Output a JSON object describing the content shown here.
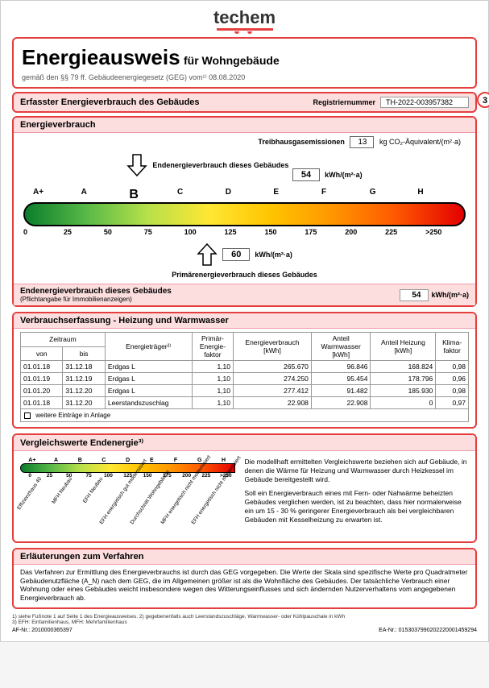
{
  "logo": "techem",
  "header": {
    "title_main": "Energieausweis",
    "title_sub": "für Wohngebäude",
    "law_line": "gemäß den §§ 79 ff. Gebäudeenergiegesetz (GEG) vom¹⁾ 08.08.2020"
  },
  "registration": {
    "label": "Erfasster Energieverbrauch des Gebäudes",
    "reg_label": "Registriernummer",
    "reg_value": "TH-2022-003957382",
    "page_num": "3"
  },
  "verbrauch": {
    "title": "Energieverbrauch",
    "emission_label": "Treibhausgasemissionen",
    "emission_value": "13",
    "emission_unit": "kg CO₂-Äquivalent/(m²·a)",
    "end_label": "Endenergieverbrauch dieses Gebäudes",
    "end_value": "54",
    "end_unit": "kWh/(m²·a)",
    "scale_classes": [
      "A+",
      "A",
      "B",
      "C",
      "D",
      "E",
      "F",
      "G",
      "H"
    ],
    "scale_ticks": [
      "0",
      "25",
      "50",
      "75",
      "100",
      "125",
      "150",
      "175",
      "200",
      "225",
      ">250"
    ],
    "highlight_class": "B",
    "primary_value": "60",
    "primary_unit": "kWh/(m²·a)",
    "primary_label": "Primärenergieverbrauch dieses Gebäudes",
    "end_banner_title": "Endenergieverbrauch dieses Gebäudes",
    "end_banner_sub": "(Pflichtangabe für Immobilienanzeigen)",
    "end_banner_value": "54",
    "end_banner_unit": "kWh/(m²·a)"
  },
  "table": {
    "title": "Verbrauchserfassung - Heizung und Warmwasser",
    "headers": {
      "zeitraum": "Zeitraum",
      "von": "von",
      "bis": "bis",
      "traeger": "Energieträger²⁾",
      "pef": "Primär-\nEnergie-\nfaktor",
      "verbrauch": "Energieverbrauch\n[kWh]",
      "ww": "Anteil\nWarmwasser\n[kWh]",
      "heiz": "Anteil Heizung\n[kWh]",
      "klima": "Klima-\nfaktor"
    },
    "rows": [
      {
        "von": "01.01.18",
        "bis": "31.12.18",
        "traeger": "Erdgas L",
        "pef": "1,10",
        "verbrauch": "265.670",
        "ww": "96.846",
        "heiz": "168.824",
        "klima": "0,98"
      },
      {
        "von": "01.01.19",
        "bis": "31.12.19",
        "traeger": "Erdgas L",
        "pef": "1,10",
        "verbrauch": "274.250",
        "ww": "95.454",
        "heiz": "178.796",
        "klima": "0,96"
      },
      {
        "von": "01.01.20",
        "bis": "31.12.20",
        "traeger": "Erdgas L",
        "pef": "1,10",
        "verbrauch": "277.412",
        "ww": "91.482",
        "heiz": "185.930",
        "klima": "0,98"
      },
      {
        "von": "01.01.18",
        "bis": "31.12.20",
        "traeger": "Leerstandszuschlag",
        "pef": "1,10",
        "verbrauch": "22.908",
        "ww": "22.908",
        "heiz": "0",
        "klima": "0,97"
      }
    ],
    "more": "weitere Einträge in Anlage"
  },
  "vergleich": {
    "title": "Vergleichswerte Endenergie³⁾",
    "mini_classes": [
      "A+",
      "A",
      "B",
      "C",
      "D",
      "E",
      "F",
      "G",
      "H"
    ],
    "mini_ticks": [
      "0",
      "25",
      "50",
      "75",
      "100",
      "125",
      "150",
      "175",
      "200",
      "225",
      ">250"
    ],
    "rot_labels": [
      "Effizienzhaus 40",
      "MFH Neubau",
      "EFH Neubau",
      "EFH energetisch\ngut modernisiert",
      "Durchschnitt\nWohngebäude",
      "MFH energetisch\nnicht modernisiert",
      "EFH energetisch\nnicht modernisiert"
    ],
    "text1": "Die modellhaft ermittelten Vergleichswerte beziehen sich auf Gebäude, in denen die Wärme für Heizung und Warmwasser durch Heizkessel im Gebäude bereitgestellt wird.",
    "text2": "Soll ein Energieverbrauch eines mit Fern- oder Nahwärme beheizten Gebäudes verglichen werden, ist zu beachten, dass hier normalerweise ein um 15 - 30 % geringerer Energieverbrauch als bei vergleichbaren Gebäuden mit Kesselheizung zu erwarten ist."
  },
  "erlaeuterung": {
    "title": "Erläuterungen zum Verfahren",
    "text": "Das Verfahren zur Ermittlung des Energieverbrauchs ist durch das GEG vorgegeben. Die Werte der Skala sind spezifische Werte pro Quadratmeter Gebäudenutzfläche (A_N) nach dem GEG, die im Allgemeinen größer ist als die Wohnfläche des Gebäudes. Der tatsächliche Verbrauch einer Wohnung oder eines Gebäudes weicht insbesondere wegen des Witterungseinflusses und sich ändernden Nutzerverhaltens vom angegebenen Energieverbrauch ab."
  },
  "footnotes": {
    "line1": "1) siehe Fußnote 1 auf Seite 1 des Energieausweises. 2) gegebenenfalls auch Leerstandszuschläge, Warmwasser- oder Kühlpauschale in kWh",
    "line2": "3) EFH: Einfamilienhaus, MFH: Mehrfamilienhaus",
    "af": "AF-Nr.: 2010000365397",
    "ea": "EA-Nr.: 0153037990202220001459294"
  }
}
